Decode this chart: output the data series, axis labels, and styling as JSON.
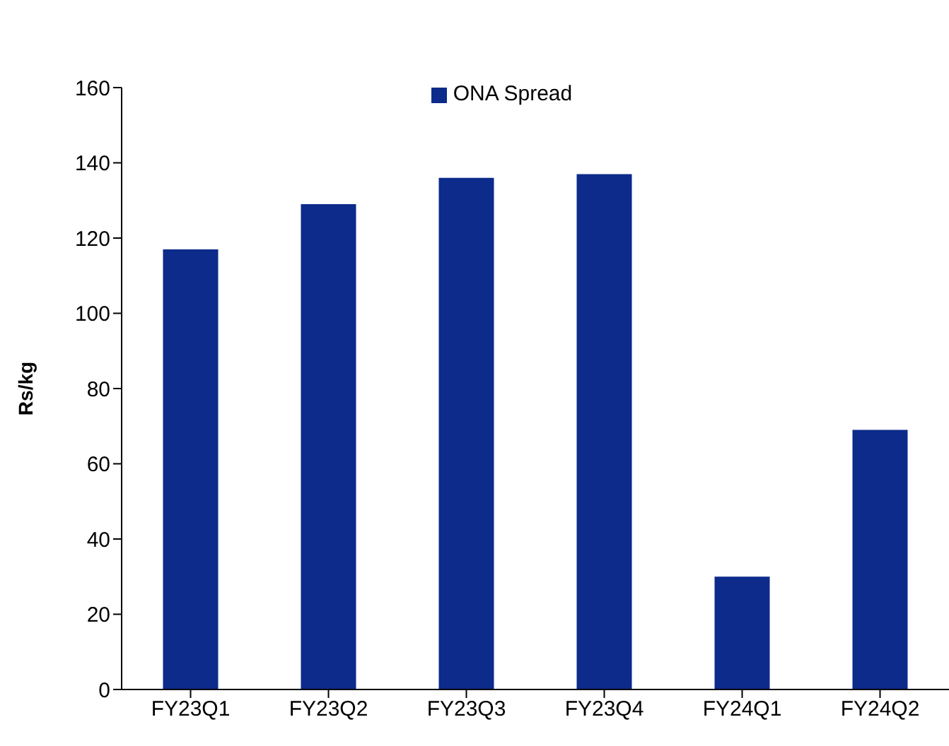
{
  "chart_data": {
    "type": "bar",
    "ylabel": "Rs/kg",
    "categories": [
      "FY23Q1",
      "FY23Q2",
      "FY23Q3",
      "FY23Q4",
      "FY24Q1",
      "FY24Q2"
    ],
    "series": [
      {
        "name": "ONA Spread",
        "color": "#0c2b8a",
        "values": [
          117,
          129,
          136,
          137,
          30,
          69
        ]
      }
    ],
    "ylim": [
      0,
      160
    ],
    "yticks": [
      0,
      20,
      40,
      60,
      80,
      100,
      120,
      140,
      160
    ],
    "grid": false,
    "legend": "top"
  }
}
